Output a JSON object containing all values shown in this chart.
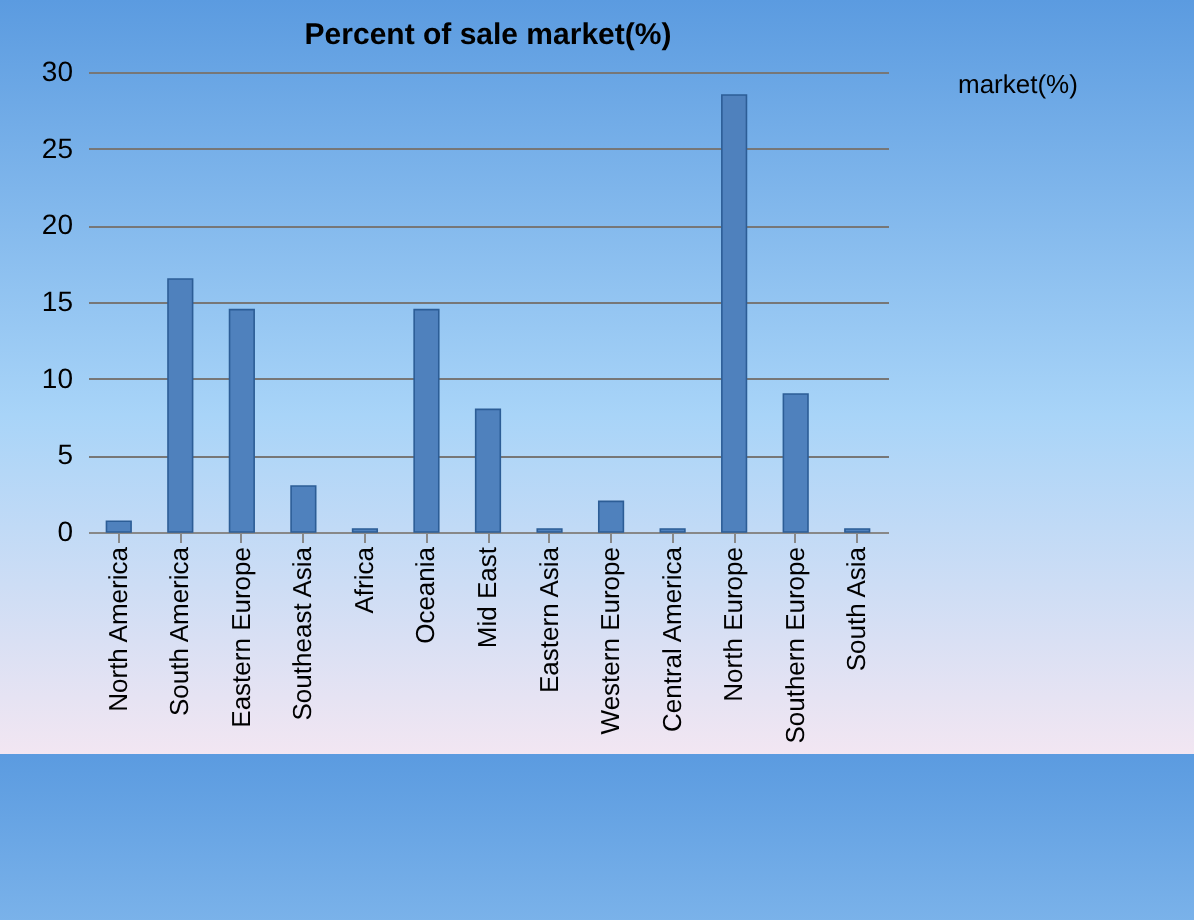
{
  "chart_data": {
    "type": "bar",
    "title": "Percent of sale market(%)",
    "categories": [
      "North America",
      "South America",
      "Eastern Europe",
      "Southeast Asia",
      "Africa",
      "Oceania",
      "Mid East",
      "Eastern Asia",
      "Western Europe",
      "Central America",
      "North Europe",
      "Southern Europe",
      "South Asia"
    ],
    "series": [
      {
        "name": "market(%)",
        "color": "#4f81bd",
        "values": [
          0.7,
          16.5,
          14.5,
          3,
          0.2,
          14.5,
          8,
          0.2,
          2,
          0.2,
          28.5,
          9,
          0.2
        ]
      }
    ],
    "ylim": [
      0,
      30
    ],
    "yticks": [
      0,
      5,
      10,
      15,
      20,
      25,
      30
    ],
    "grid": "y",
    "legend": "right"
  }
}
